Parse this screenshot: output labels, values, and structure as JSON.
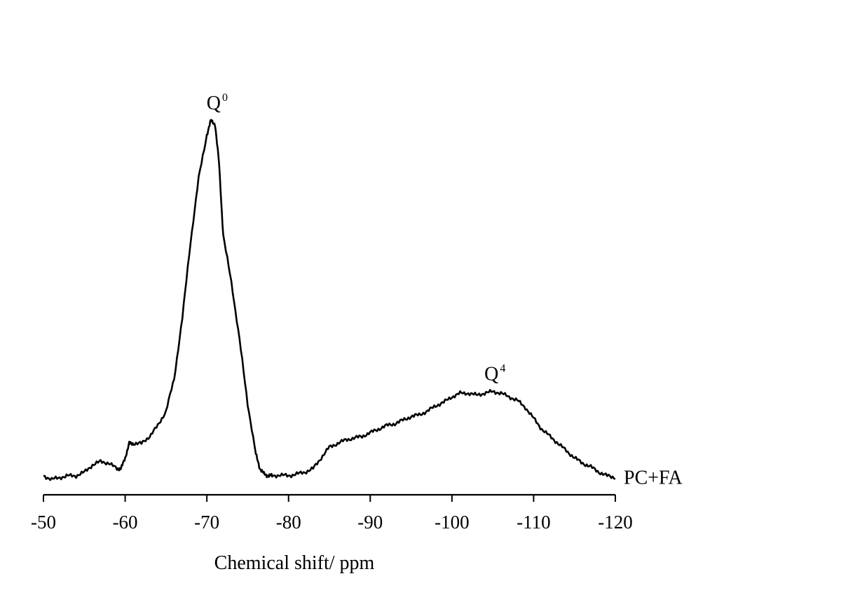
{
  "chart_data": {
    "type": "line",
    "title": "",
    "xlabel": "Chemical shift/ ppm",
    "ylabel": "",
    "xlim": [
      -50,
      -120
    ],
    "ylim": [
      0,
      1
    ],
    "x_reversed": true,
    "grid": false,
    "x_ticks": [
      -50,
      -60,
      -70,
      -80,
      -90,
      -100,
      -110,
      -120
    ],
    "x_tick_labels": [
      "-50",
      "-60",
      "-70",
      "-80",
      "-90",
      "-100",
      "-110",
      "-120"
    ],
    "series": [
      {
        "name": "PC+FA",
        "x": [
          -50,
          -51,
          -52,
          -53,
          -54,
          -55,
          -56,
          -57,
          -58,
          -59,
          -59.5,
          -60,
          -60.5,
          -61,
          -62,
          -63,
          -64,
          -65,
          -66,
          -67,
          -68,
          -69,
          -70,
          -70.5,
          -71,
          -71.5,
          -72,
          -73,
          -74,
          -75,
          -76,
          -76.5,
          -77,
          -77.5,
          -78,
          -79,
          -80,
          -81,
          -82,
          -83,
          -84,
          -85,
          -86,
          -87,
          -88,
          -89,
          -90,
          -91,
          -92,
          -93,
          -94,
          -95,
          -96,
          -97,
          -98,
          -99,
          -100,
          -101,
          -102,
          -103,
          -104,
          -105,
          -106,
          -107,
          -108,
          -109,
          -110,
          -111,
          -112,
          -113,
          -114,
          -115,
          -116,
          -117,
          -118,
          -119,
          -120
        ],
        "y": [
          0.01,
          0.0,
          0.005,
          0.01,
          0.01,
          0.02,
          0.04,
          0.05,
          0.045,
          0.03,
          0.03,
          0.06,
          0.1,
          0.1,
          0.1,
          0.12,
          0.15,
          0.19,
          0.28,
          0.45,
          0.66,
          0.84,
          0.96,
          1.0,
          0.99,
          0.88,
          0.68,
          0.55,
          0.39,
          0.21,
          0.07,
          0.03,
          0.015,
          0.01,
          0.01,
          0.012,
          0.01,
          0.015,
          0.02,
          0.03,
          0.06,
          0.09,
          0.1,
          0.11,
          0.115,
          0.12,
          0.13,
          0.14,
          0.15,
          0.155,
          0.165,
          0.175,
          0.18,
          0.19,
          0.205,
          0.215,
          0.23,
          0.24,
          0.24,
          0.235,
          0.24,
          0.245,
          0.24,
          0.23,
          0.22,
          0.2,
          0.17,
          0.14,
          0.12,
          0.1,
          0.08,
          0.06,
          0.045,
          0.035,
          0.02,
          0.01,
          0.005
        ]
      }
    ],
    "annotations": [
      {
        "text": "Q",
        "sup": "0",
        "x": -71,
        "y": 1.0
      },
      {
        "text": "Q",
        "sup": "4",
        "x": -105,
        "y": 0.245
      }
    ]
  }
}
